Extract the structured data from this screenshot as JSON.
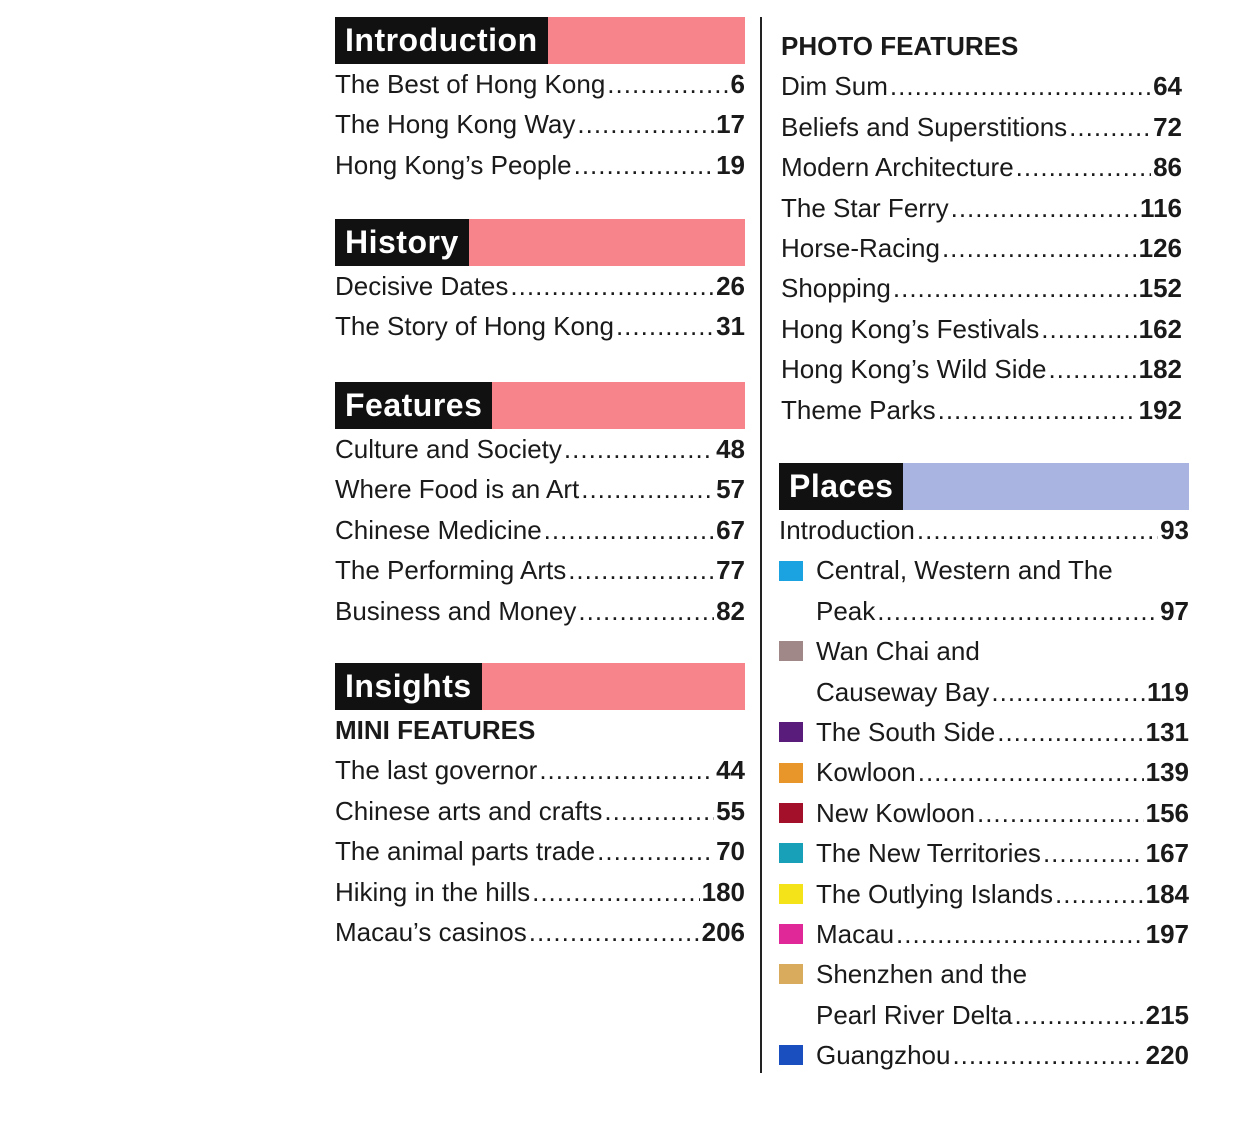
{
  "left": [
    {
      "title": "Introduction",
      "bar_color": "#f6848a",
      "entries": [
        {
          "label": "The Best of Hong Kong",
          "page": "6"
        },
        {
          "label": "The Hong Kong Way",
          "page": "17"
        },
        {
          "label": "Hong Kong’s People",
          "page": "19"
        }
      ]
    },
    {
      "title": "History",
      "bar_color": "#f6848a",
      "entries": [
        {
          "label": "Decisive Dates",
          "page": "26"
        },
        {
          "label": "The Story of Hong Kong",
          "page": "31"
        }
      ]
    },
    {
      "title": "Features",
      "bar_color": "#f6848a",
      "entries": [
        {
          "label": "Culture and Society",
          "page": "48"
        },
        {
          "label": "Where Food is an Art",
          "page": "57"
        },
        {
          "label": "Chinese Medicine",
          "page": "67"
        },
        {
          "label": "The Performing Arts",
          "page": "77"
        },
        {
          "label": "Business and Money",
          "page": "82"
        }
      ]
    },
    {
      "title": "Insights",
      "bar_color": "#f6848a",
      "subtitle": "MINI FEATURES",
      "entries": [
        {
          "label": "The last governor",
          "page": "44"
        },
        {
          "label": "Chinese arts and crafts",
          "page": "55"
        },
        {
          "label": "The animal parts trade",
          "page": "70"
        },
        {
          "label": "Hiking in the hills",
          "page": "180"
        },
        {
          "label": "Macau’s casinos",
          "page": "206"
        }
      ]
    }
  ],
  "photo_features": {
    "title": "PHOTO FEATURES",
    "entries": [
      {
        "label": "Dim Sum",
        "page": "64"
      },
      {
        "label": "Beliefs and Superstitions",
        "page": "72"
      },
      {
        "label": "Modern Architecture",
        "page": "86"
      },
      {
        "label": "The Star Ferry",
        "page": "116"
      },
      {
        "label": "Horse-Racing",
        "page": "126"
      },
      {
        "label": "Shopping",
        "page": "152"
      },
      {
        "label": "Hong Kong’s Festivals",
        "page": "162"
      },
      {
        "label": "Hong Kong’s Wild Side",
        "page": "182"
      },
      {
        "label": "Theme Parks",
        "page": "192"
      }
    ]
  },
  "places": {
    "title": "Places",
    "bar_color": "#aab4e0",
    "entries": [
      {
        "label": "Introduction",
        "page": "93"
      },
      {
        "lines": [
          "Central, Western and The",
          "Peak"
        ],
        "page": "97",
        "color": "#1aa3e0"
      },
      {
        "lines": [
          "Wan Chai and",
          "Causeway Bay"
        ],
        "page": "119",
        "color": "#a08888"
      },
      {
        "label": "The South Side",
        "page": "131",
        "color": "#5a1c7a"
      },
      {
        "label": "Kowloon",
        "page": "139",
        "color": "#e8962a"
      },
      {
        "label": "New Kowloon",
        "page": "156",
        "color": "#a3102a"
      },
      {
        "label": "The New Territories",
        "page": "167",
        "color": "#17a0b8"
      },
      {
        "label": "The Outlying Islands",
        "page": "184",
        "color": "#f5e31a"
      },
      {
        "label": "Macau",
        "page": "197",
        "color": "#e02898"
      },
      {
        "lines": [
          "Shenzhen and the",
          "Pearl River Delta"
        ],
        "page": "215",
        "color": "#d8ac5c"
      },
      {
        "label": "Guangzhou",
        "page": "220",
        "color": "#1a4fc0"
      }
    ]
  }
}
